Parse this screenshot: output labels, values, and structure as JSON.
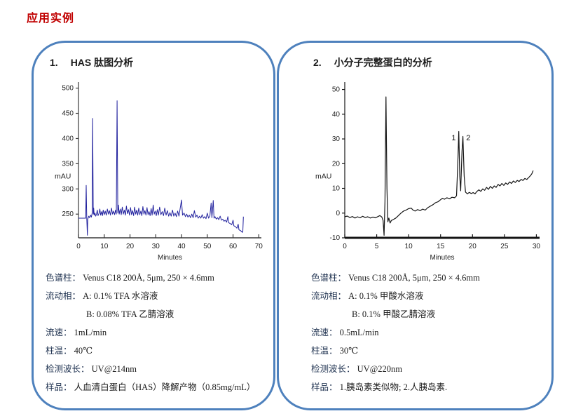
{
  "page_title": "应用实例",
  "colors": {
    "title_red": "#c00000",
    "panel_border_blue": "#4e81bd",
    "left_trace_navy": "#22229e",
    "right_trace_black": "#141414",
    "param_label_navy": "#1f3250"
  },
  "panels": [
    {
      "number": "1.",
      "title": "HAS 肽图分析",
      "params": [
        {
          "label": "色谱柱：",
          "value": "Venus C18 200Å, 5μm, 250  × 4.6mm"
        },
        {
          "label": "流动相：",
          "value": "A: 0.1% TFA 水溶液"
        },
        {
          "label": "",
          "value": "B: 0.08% TFA 乙腈溶液"
        },
        {
          "label": "流速：",
          "value": "1mL/min"
        },
        {
          "label": "柱温：",
          "value": "40℃"
        },
        {
          "label": "检测波长：",
          "value": "UV@214nm"
        },
        {
          "label": "样品：",
          "value": "人血清白蛋白（HAS）降解产物（0.85mg/mL）"
        }
      ]
    },
    {
      "number": "2.",
      "title": "小分子完整蛋白的分析",
      "params": [
        {
          "label": "色谱柱：",
          "value": "Venus C18 200Å, 5μm, 250  × 4.6mm"
        },
        {
          "label": "流动相：",
          "value": "A: 0.1%  甲酸水溶液"
        },
        {
          "label": "",
          "value": "B: 0.1%  甲酸乙腈溶液"
        },
        {
          "label": "流速：",
          "value": "0.5mL/min"
        },
        {
          "label": "柱温：",
          "value": "30℃"
        },
        {
          "label": "检测波长：",
          "value": "UV@220nm"
        },
        {
          "label": "样品：",
          "value": "1.胰岛素类似物; 2.人胰岛素."
        }
      ]
    }
  ],
  "chart_data": [
    {
      "type": "line",
      "title": "HAS peptide map chromatogram",
      "xlabel": "Minutes",
      "ylabel": "mAU",
      "xlim": [
        0,
        71
      ],
      "ylim": [
        203,
        512
      ],
      "xticks": [
        0,
        10,
        20,
        30,
        40,
        50,
        60,
        70
      ],
      "yticks": [
        250,
        300,
        350,
        400,
        450,
        500
      ],
      "grid": false,
      "line_color": "#22229e",
      "axis_color": "#3a3a3a",
      "x_axis_width": 1.5,
      "line_width": 1,
      "annotations": [],
      "points": [
        [
          0,
          242
        ],
        [
          1,
          242
        ],
        [
          2,
          242
        ],
        [
          2.8,
          242
        ],
        [
          3.0,
          307
        ],
        [
          3.2,
          242
        ],
        [
          3.45,
          208
        ],
        [
          3.6,
          240
        ],
        [
          4,
          246
        ],
        [
          4.3,
          243
        ],
        [
          4.7,
          248
        ],
        [
          5.0,
          244
        ],
        [
          5.3,
          252
        ],
        [
          5.5,
          440
        ],
        [
          5.75,
          250
        ],
        [
          5.9,
          262
        ],
        [
          6.1,
          248
        ],
        [
          6.4,
          252
        ],
        [
          6.7,
          246
        ],
        [
          7.0,
          250
        ],
        [
          7.3,
          258
        ],
        [
          7.6,
          247
        ],
        [
          8.0,
          252
        ],
        [
          8.3,
          260
        ],
        [
          8.6,
          248
        ],
        [
          9.0,
          255
        ],
        [
          9.3,
          247
        ],
        [
          9.6,
          258
        ],
        [
          10,
          249
        ],
        [
          10.4,
          256
        ],
        [
          10.8,
          248
        ],
        [
          11.2,
          260
        ],
        [
          11.6,
          250
        ],
        [
          12,
          257
        ],
        [
          12.4,
          248
        ],
        [
          12.8,
          262
        ],
        [
          13.2,
          250
        ],
        [
          13.6,
          256
        ],
        [
          14,
          249
        ],
        [
          14.4,
          258
        ],
        [
          14.7,
          250
        ],
        [
          15.0,
          475
        ],
        [
          15.25,
          252
        ],
        [
          15.5,
          268
        ],
        [
          15.8,
          250
        ],
        [
          16.2,
          260
        ],
        [
          16.6,
          249
        ],
        [
          17,
          264
        ],
        [
          17.4,
          250
        ],
        [
          17.8,
          258
        ],
        [
          18.2,
          248
        ],
        [
          18.6,
          266
        ],
        [
          19,
          251
        ],
        [
          19.4,
          259
        ],
        [
          19.8,
          248
        ],
        [
          20.2,
          263
        ],
        [
          20.6,
          249
        ],
        [
          21,
          257
        ],
        [
          21.4,
          247
        ],
        [
          21.8,
          264
        ],
        [
          22.2,
          250
        ],
        [
          22.6,
          258
        ],
        [
          23,
          248
        ],
        [
          23.4,
          262
        ],
        [
          23.8,
          249
        ],
        [
          24.2,
          256
        ],
        [
          24.6,
          247
        ],
        [
          25,
          265
        ],
        [
          25.4,
          250
        ],
        [
          25.8,
          257
        ],
        [
          26.2,
          248
        ],
        [
          26.6,
          263
        ],
        [
          27,
          249
        ],
        [
          27.4,
          255
        ],
        [
          27.8,
          247
        ],
        [
          28.2,
          261
        ],
        [
          28.6,
          248
        ],
        [
          29,
          268
        ],
        [
          29.4,
          250
        ],
        [
          29.8,
          256
        ],
        [
          30.2,
          247
        ],
        [
          30.6,
          259
        ],
        [
          31,
          248
        ],
        [
          31.5,
          264
        ],
        [
          32,
          249
        ],
        [
          32.5,
          255
        ],
        [
          33,
          247
        ],
        [
          33.5,
          262
        ],
        [
          34,
          248
        ],
        [
          34.5,
          257
        ],
        [
          35,
          246
        ],
        [
          35.5,
          253
        ],
        [
          36,
          246
        ],
        [
          36.5,
          258
        ],
        [
          37,
          246
        ],
        [
          37.5,
          252
        ],
        [
          38,
          245
        ],
        [
          38.5,
          256
        ],
        [
          39,
          246
        ],
        [
          39.5,
          262
        ],
        [
          40,
          278
        ],
        [
          40.4,
          248
        ],
        [
          41,
          252
        ],
        [
          41.5,
          245
        ],
        [
          42,
          250
        ],
        [
          42.5,
          244
        ],
        [
          43,
          248
        ],
        [
          43.5,
          243
        ],
        [
          44,
          250
        ],
        [
          44.5,
          243
        ],
        [
          45,
          257
        ],
        [
          45.5,
          244
        ],
        [
          46,
          248
        ],
        [
          46.5,
          242
        ],
        [
          47,
          246
        ],
        [
          47.5,
          242
        ],
        [
          48,
          249
        ],
        [
          48.5,
          242
        ],
        [
          49,
          245
        ],
        [
          49.5,
          241
        ],
        [
          50,
          252
        ],
        [
          50.5,
          242
        ],
        [
          51,
          246
        ],
        [
          51.5,
          272
        ],
        [
          51.8,
          243
        ],
        [
          52.3,
          277
        ],
        [
          52.6,
          242
        ],
        [
          53,
          245
        ],
        [
          53.5,
          240
        ],
        [
          54,
          243
        ],
        [
          54.5,
          239
        ],
        [
          55,
          246
        ],
        [
          55.5,
          238
        ],
        [
          56,
          240
        ],
        [
          56.5,
          236
        ],
        [
          57,
          238
        ],
        [
          57.5,
          234
        ],
        [
          58,
          245
        ],
        [
          58.3,
          233
        ],
        [
          59,
          231
        ],
        [
          59.5,
          229
        ],
        [
          60,
          238
        ],
        [
          60.3,
          227
        ],
        [
          61,
          225
        ],
        [
          61.5,
          222
        ],
        [
          62,
          230
        ],
        [
          62.3,
          219
        ],
        [
          63,
          217
        ],
        [
          63.3,
          215
        ],
        [
          63.8,
          214
        ],
        [
          64,
          245
        ]
      ]
    },
    {
      "type": "line",
      "title": "Small-molecule intact protein chromatogram",
      "xlabel": "Minutes",
      "ylabel": "mAU",
      "xlim": [
        0,
        30.5
      ],
      "ylim": [
        -10,
        53
      ],
      "xticks": [
        0,
        5,
        10,
        15,
        20,
        25,
        30
      ],
      "yticks": [
        -10,
        0,
        10,
        20,
        30,
        40,
        50
      ],
      "grid": false,
      "line_color": "#141414",
      "axis_color": "#141414",
      "x_axis_width": 3,
      "line_width": 1.2,
      "annotations": [
        {
          "x": 17.05,
          "y": 29.5,
          "text": "1"
        },
        {
          "x": 19.35,
          "y": 29.5,
          "text": "2"
        }
      ],
      "points": [
        [
          0,
          -1.5
        ],
        [
          0.4,
          -1.2
        ],
        [
          0.8,
          -1.8
        ],
        [
          1.2,
          -1.4
        ],
        [
          1.6,
          -2.0
        ],
        [
          2.0,
          -1.5
        ],
        [
          2.4,
          -1.9
        ],
        [
          2.8,
          -1.3
        ],
        [
          3.2,
          -1.8
        ],
        [
          3.6,
          -1.5
        ],
        [
          4.0,
          -2.0
        ],
        [
          4.4,
          -1.6
        ],
        [
          4.8,
          -1.9
        ],
        [
          5.2,
          -1.4
        ],
        [
          5.5,
          -1.0
        ],
        [
          5.8,
          -1.6
        ],
        [
          6.0,
          -3.0
        ],
        [
          6.15,
          -9.0
        ],
        [
          6.3,
          5
        ],
        [
          6.45,
          47
        ],
        [
          6.6,
          10
        ],
        [
          6.75,
          -3.5
        ],
        [
          6.9,
          -2.0
        ],
        [
          7.1,
          -4.0
        ],
        [
          7.3,
          -3.0
        ],
        [
          7.6,
          -2.6
        ],
        [
          8.0,
          -2.0
        ],
        [
          8.4,
          -1.0
        ],
        [
          8.8,
          0.0
        ],
        [
          9.2,
          0.8
        ],
        [
          9.6,
          1.2
        ],
        [
          10.0,
          1.8
        ],
        [
          10.4,
          2.0
        ],
        [
          10.7,
          1.2
        ],
        [
          11.0,
          0.8
        ],
        [
          11.4,
          1.4
        ],
        [
          11.8,
          1.0
        ],
        [
          12.2,
          1.6
        ],
        [
          12.6,
          1.2
        ],
        [
          13.0,
          2.2
        ],
        [
          13.4,
          2.8
        ],
        [
          13.8,
          3.4
        ],
        [
          14.2,
          4.2
        ],
        [
          14.6,
          4.6
        ],
        [
          15.0,
          5.4
        ],
        [
          15.3,
          6.0
        ],
        [
          15.6,
          5.6
        ],
        [
          16.0,
          6.2
        ],
        [
          16.4,
          5.8
        ],
        [
          16.8,
          6.4
        ],
        [
          17.2,
          6.2
        ],
        [
          17.5,
          7.0
        ],
        [
          17.7,
          20
        ],
        [
          17.85,
          33
        ],
        [
          18.0,
          15
        ],
        [
          18.15,
          9
        ],
        [
          18.35,
          25
        ],
        [
          18.5,
          31
        ],
        [
          18.7,
          15
        ],
        [
          18.9,
          8.5
        ],
        [
          19.2,
          7.8
        ],
        [
          19.5,
          8.4
        ],
        [
          19.8,
          7.9
        ],
        [
          20.1,
          8.3
        ],
        [
          20.4,
          7.8
        ],
        [
          20.7,
          8.8
        ],
        [
          21.0,
          9.4
        ],
        [
          21.3,
          8.8
        ],
        [
          21.6,
          9.8
        ],
        [
          21.9,
          9.2
        ],
        [
          22.2,
          10.4
        ],
        [
          22.5,
          9.6
        ],
        [
          22.8,
          10.8
        ],
        [
          23.1,
          10.0
        ],
        [
          23.4,
          11.0
        ],
        [
          23.7,
          10.4
        ],
        [
          24.0,
          11.6
        ],
        [
          24.3,
          11.0
        ],
        [
          24.6,
          12.0
        ],
        [
          24.9,
          11.2
        ],
        [
          25.2,
          12.2
        ],
        [
          25.5,
          11.6
        ],
        [
          25.8,
          12.6
        ],
        [
          26.1,
          12.0
        ],
        [
          26.4,
          13.0
        ],
        [
          26.7,
          12.4
        ],
        [
          27.0,
          13.2
        ],
        [
          27.3,
          12.8
        ],
        [
          27.6,
          13.6
        ],
        [
          27.9,
          13.2
        ],
        [
          28.2,
          14.0
        ],
        [
          28.5,
          13.6
        ],
        [
          28.8,
          14.4
        ],
        [
          29.1,
          15.2
        ],
        [
          29.3,
          16.0
        ],
        [
          29.5,
          17.2
        ]
      ]
    }
  ]
}
